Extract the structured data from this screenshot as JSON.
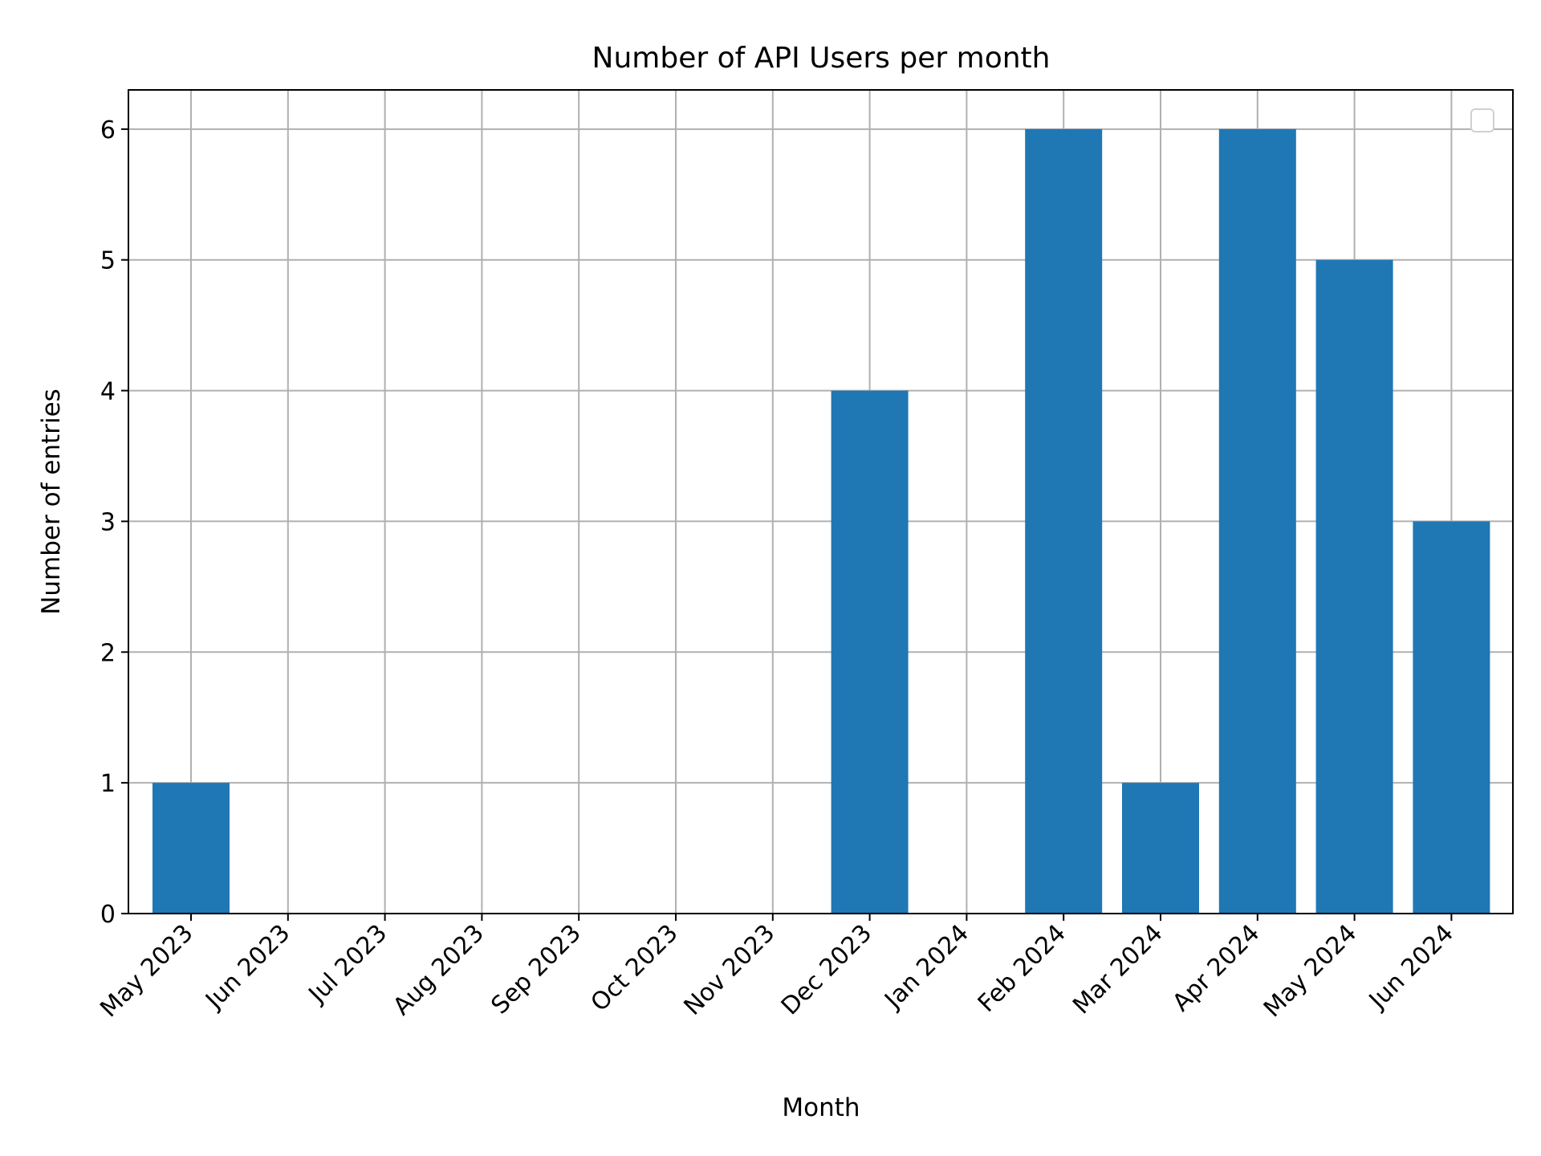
{
  "chart_data": {
    "type": "bar",
    "title": "Number of API Users per month",
    "xlabel": "Month",
    "ylabel": "Number of entries",
    "categories": [
      "May 2023",
      "Jun 2023",
      "Jul 2023",
      "Aug 2023",
      "Sep 2023",
      "Oct 2023",
      "Nov 2023",
      "Dec 2023",
      "Jan 2024",
      "Feb 2024",
      "Mar 2024",
      "Apr 2024",
      "May 2024",
      "Jun 2024"
    ],
    "bars": [
      {
        "x": "May 2023",
        "y": 1
      },
      {
        "x": "Dec 2023",
        "y": 4
      },
      {
        "x": "Feb 2024",
        "y": 6
      },
      {
        "x": "Mar 2024",
        "y": 1
      },
      {
        "x": "Apr 2024",
        "y": 6
      },
      {
        "x": "May 2024",
        "y": 5
      },
      {
        "x": "Jun 2024",
        "y": 3
      }
    ],
    "y_ticks": [
      0,
      1,
      2,
      3,
      4,
      5,
      6
    ],
    "ylim": [
      0,
      6.3
    ],
    "grid": true,
    "legend": {
      "placement": "top-right",
      "entries": []
    },
    "colors": {
      "bar": "#1f77b4",
      "grid": "#b0b0b0",
      "axes": "#000000"
    }
  }
}
